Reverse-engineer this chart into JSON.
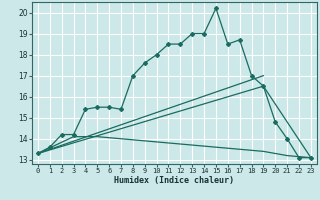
{
  "title": "",
  "xlabel": "Humidex (Indice chaleur)",
  "background_color": "#cce8e8",
  "grid_color": "#ffffff",
  "line_color": "#1a6b60",
  "xlim": [
    -0.5,
    23.5
  ],
  "ylim": [
    12.8,
    20.5
  ],
  "yticks": [
    13,
    14,
    15,
    16,
    17,
    18,
    19,
    20
  ],
  "xticks": [
    0,
    1,
    2,
    3,
    4,
    5,
    6,
    7,
    8,
    9,
    10,
    11,
    12,
    13,
    14,
    15,
    16,
    17,
    18,
    19,
    20,
    21,
    22,
    23
  ],
  "line1_x": [
    0,
    1,
    2,
    3,
    4,
    5,
    6,
    7,
    8,
    9,
    10,
    11,
    12,
    13,
    14,
    15,
    16,
    17,
    18,
    19,
    20,
    21,
    22,
    23
  ],
  "line1_y": [
    13.3,
    13.6,
    14.2,
    14.2,
    15.4,
    15.5,
    15.5,
    15.4,
    17.0,
    17.6,
    18.0,
    18.5,
    18.5,
    19.0,
    19.0,
    20.2,
    18.5,
    18.7,
    17.0,
    16.5,
    14.8,
    14.0,
    13.1,
    13.1
  ],
  "line2_x": [
    0,
    19
  ],
  "line2_y": [
    13.3,
    17.0
  ],
  "line3_x": [
    0,
    19,
    23
  ],
  "line3_y": [
    13.3,
    16.5,
    13.1
  ],
  "line4_x": [
    0,
    3,
    5,
    7,
    9,
    11,
    13,
    15,
    17,
    19,
    21,
    23
  ],
  "line4_y": [
    13.3,
    14.1,
    14.1,
    14.0,
    13.9,
    13.8,
    13.7,
    13.6,
    13.5,
    13.4,
    13.2,
    13.1
  ]
}
